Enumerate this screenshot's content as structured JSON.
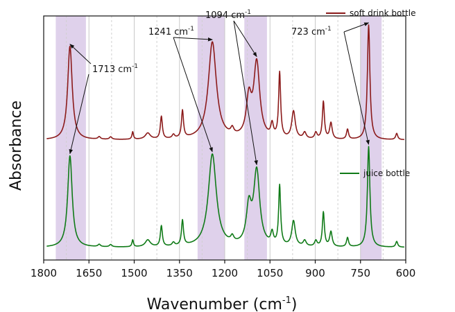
{
  "chart_data": {
    "type": "line",
    "xlabel": "Wavenumber (cm",
    "xlabel_sup": "-1",
    "xlabel_end": ")",
    "ylabel": "Absorbance",
    "xlim": [
      1800,
      600
    ],
    "x_reversed": true,
    "x_ticks": [
      1800,
      1650,
      1500,
      1350,
      1200,
      1050,
      900,
      750,
      600
    ],
    "y_ticks_shown": false,
    "legend_position": "top-right, beside each trace",
    "grid": {
      "major": [
        1800,
        1650,
        1500,
        1350,
        1200,
        1050,
        900,
        750,
        600
      ],
      "minor": [
        1725,
        1575,
        1425,
        1275,
        1125,
        975,
        825,
        675
      ]
    },
    "highlight_bands": [
      [
        1760,
        1660
      ],
      [
        1290,
        1200
      ],
      [
        1135,
        1060
      ],
      [
        750,
        680
      ]
    ],
    "highlight_color": "#d9c9e8",
    "series": [
      {
        "name": "soft drink bottle",
        "color": "#8b1a1a",
        "peaks": [
          {
            "x": 1713,
            "h": 0.75,
            "w": 9
          },
          {
            "x": 1616,
            "h": 0.02,
            "w": 5
          },
          {
            "x": 1578,
            "h": 0.02,
            "w": 5
          },
          {
            "x": 1505,
            "h": 0.06,
            "w": 3
          },
          {
            "x": 1455,
            "h": 0.05,
            "w": 10
          },
          {
            "x": 1410,
            "h": 0.18,
            "w": 4
          },
          {
            "x": 1370,
            "h": 0.03,
            "w": 5
          },
          {
            "x": 1340,
            "h": 0.22,
            "w": 4
          },
          {
            "x": 1241,
            "h": 0.78,
            "w": 16
          },
          {
            "x": 1175,
            "h": 0.05,
            "w": 6
          },
          {
            "x": 1120,
            "h": 0.3,
            "w": 10
          },
          {
            "x": 1094,
            "h": 0.6,
            "w": 12
          },
          {
            "x": 1043,
            "h": 0.1,
            "w": 5
          },
          {
            "x": 1018,
            "h": 0.52,
            "w": 4
          },
          {
            "x": 972,
            "h": 0.22,
            "w": 7
          },
          {
            "x": 935,
            "h": 0.05,
            "w": 6
          },
          {
            "x": 898,
            "h": 0.05,
            "w": 5
          },
          {
            "x": 873,
            "h": 0.3,
            "w": 4
          },
          {
            "x": 848,
            "h": 0.13,
            "w": 5
          },
          {
            "x": 793,
            "h": 0.08,
            "w": 4
          },
          {
            "x": 723,
            "h": 0.92,
            "w": 5
          },
          {
            "x": 630,
            "h": 0.05,
            "w": 4
          }
        ]
      },
      {
        "name": "juice bottle",
        "color": "#0f7a17",
        "peaks": [
          {
            "x": 1713,
            "h": 0.8,
            "w": 9
          },
          {
            "x": 1616,
            "h": 0.02,
            "w": 5
          },
          {
            "x": 1578,
            "h": 0.02,
            "w": 5
          },
          {
            "x": 1505,
            "h": 0.06,
            "w": 3
          },
          {
            "x": 1455,
            "h": 0.06,
            "w": 10
          },
          {
            "x": 1410,
            "h": 0.18,
            "w": 4
          },
          {
            "x": 1370,
            "h": 0.03,
            "w": 5
          },
          {
            "x": 1340,
            "h": 0.22,
            "w": 4
          },
          {
            "x": 1241,
            "h": 0.81,
            "w": 16
          },
          {
            "x": 1175,
            "h": 0.05,
            "w": 6
          },
          {
            "x": 1120,
            "h": 0.32,
            "w": 10
          },
          {
            "x": 1094,
            "h": 0.65,
            "w": 12
          },
          {
            "x": 1043,
            "h": 0.1,
            "w": 5
          },
          {
            "x": 1018,
            "h": 0.52,
            "w": 4
          },
          {
            "x": 972,
            "h": 0.22,
            "w": 7
          },
          {
            "x": 935,
            "h": 0.05,
            "w": 6
          },
          {
            "x": 898,
            "h": 0.05,
            "w": 5
          },
          {
            "x": 873,
            "h": 0.3,
            "w": 4
          },
          {
            "x": 848,
            "h": 0.13,
            "w": 5
          },
          {
            "x": 793,
            "h": 0.08,
            "w": 4
          },
          {
            "x": 723,
            "h": 0.88,
            "w": 5
          },
          {
            "x": 630,
            "h": 0.05,
            "w": 4
          }
        ]
      }
    ],
    "annotations": [
      {
        "label": "1713 cm",
        "sup": "-1",
        "targets": [
          1713
        ]
      },
      {
        "label": "1241 cm",
        "sup": "-1",
        "targets": [
          1241
        ]
      },
      {
        "label": "1094 cm",
        "sup": "-1",
        "targets": [
          1094
        ]
      },
      {
        "label": "723 cm",
        "sup": "-1",
        "targets": [
          723
        ]
      }
    ]
  }
}
